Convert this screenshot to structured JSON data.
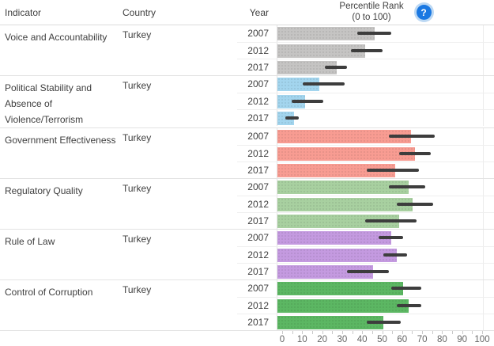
{
  "table": {
    "headers": {
      "indicator": "Indicator",
      "country": "Country",
      "year": "Year"
    }
  },
  "chart_header": {
    "title_line1": "Percentile Rank",
    "title_line2": "(0 to 100)",
    "help_icon": "question-mark-icon",
    "help_glyph": "?"
  },
  "colors": {
    "voice_and_accountability": "#c5c4c3",
    "political_stability": "#a3d5ee",
    "government_effectiveness": "#f89c92",
    "regulatory_quality": "#a8d0a0",
    "rule_of_law": "#c49ae0",
    "control_of_corruption": "#5cb763",
    "confidence_interval": "#3d3d3d",
    "help_icon_blue": "#1a78e2"
  },
  "chart_data": {
    "type": "bar",
    "title": "Percentile Rank (0 to 100)",
    "xlabel": "Percentile Rank",
    "xlim": [
      0,
      100
    ],
    "x_ticks": [
      0,
      10,
      20,
      30,
      40,
      50,
      60,
      70,
      80,
      90,
      100
    ],
    "minor_tick_step": 5,
    "orientation": "horizontal",
    "error_bars": "90% confidence interval",
    "legend_position": "none",
    "categories_note": "grouped by indicator, one bar per year",
    "years": [
      "2007",
      "2012",
      "2017"
    ],
    "series": [
      {
        "indicator": "Voice and Accountability",
        "country": "Turkey",
        "color": "#c5c4c3",
        "points": [
          {
            "year": "2007",
            "value": 46,
            "ci_low": 37,
            "ci_high": 54
          },
          {
            "year": "2012",
            "value": 41,
            "ci_low": 34,
            "ci_high": 50
          },
          {
            "year": "2017",
            "value": 27,
            "ci_low": 21,
            "ci_high": 32
          }
        ]
      },
      {
        "indicator": "Political Stability and Absence of Violence/Terrorism",
        "country": "Turkey",
        "color": "#a3d5ee",
        "points": [
          {
            "year": "2007",
            "value": 18,
            "ci_low": 10,
            "ci_high": 31
          },
          {
            "year": "2012",
            "value": 11,
            "ci_low": 4.5,
            "ci_high": 20
          },
          {
            "year": "2017",
            "value": 5.5,
            "ci_low": 1,
            "ci_high": 8
          }
        ]
      },
      {
        "indicator": "Government Effectiveness",
        "country": "Turkey",
        "color": "#f89c92",
        "points": [
          {
            "year": "2007",
            "value": 64,
            "ci_low": 53,
            "ci_high": 76
          },
          {
            "year": "2012",
            "value": 66,
            "ci_low": 58,
            "ci_high": 74
          },
          {
            "year": "2017",
            "value": 56,
            "ci_low": 42,
            "ci_high": 68
          }
        ]
      },
      {
        "indicator": "Regulatory Quality",
        "country": "Turkey",
        "color": "#a8d0a0",
        "points": [
          {
            "year": "2007",
            "value": 63,
            "ci_low": 53,
            "ci_high": 71
          },
          {
            "year": "2012",
            "value": 65,
            "ci_low": 57,
            "ci_high": 75
          },
          {
            "year": "2017",
            "value": 58,
            "ci_low": 41,
            "ci_high": 67
          }
        ]
      },
      {
        "indicator": "Rule of Law",
        "country": "Turkey",
        "color": "#c49ae0",
        "points": [
          {
            "year": "2007",
            "value": 54,
            "ci_low": 48,
            "ci_high": 60
          },
          {
            "year": "2012",
            "value": 57,
            "ci_low": 50,
            "ci_high": 62
          },
          {
            "year": "2017",
            "value": 45,
            "ci_low": 32,
            "ci_high": 53
          }
        ]
      },
      {
        "indicator": "Control of Corruption",
        "country": "Turkey",
        "color": "#5cb763",
        "points": [
          {
            "year": "2007",
            "value": 60,
            "ci_low": 54,
            "ci_high": 69
          },
          {
            "year": "2012",
            "value": 63,
            "ci_low": 57,
            "ci_high": 69
          },
          {
            "year": "2017",
            "value": 50,
            "ci_low": 42,
            "ci_high": 59
          }
        ]
      }
    ]
  }
}
